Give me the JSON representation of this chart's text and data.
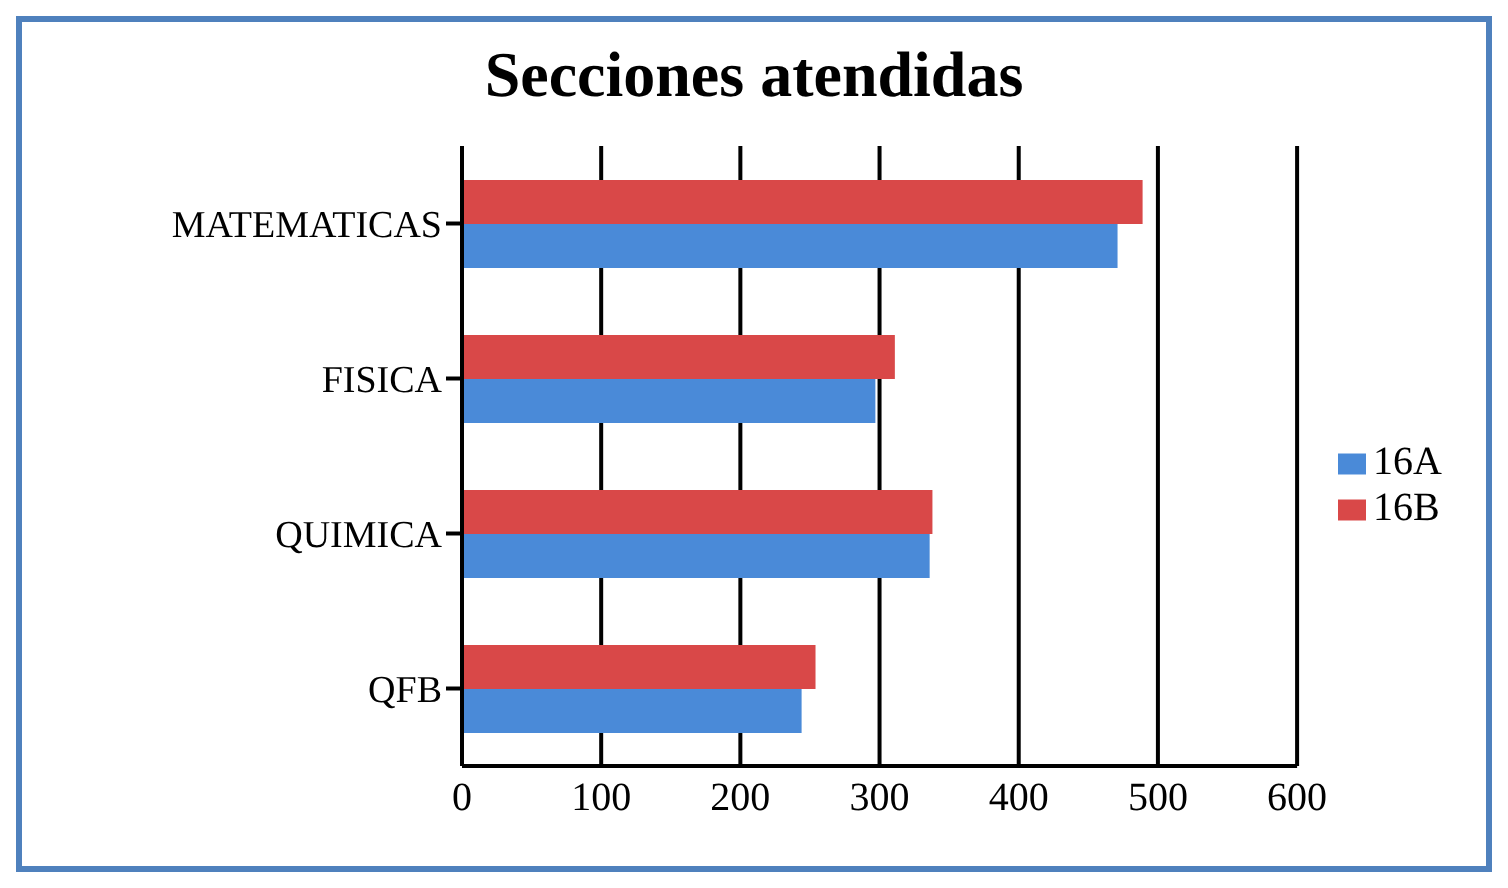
{
  "chart_data": {
    "type": "bar",
    "orientation": "horizontal",
    "title": "Secciones atendidas",
    "categories": [
      "MATEMATICAS",
      "FISICA",
      "QUIMICA",
      "QFB"
    ],
    "series": [
      {
        "name": "16A",
        "color": "#4a8ad8",
        "values": [
          471,
          297,
          336,
          244
        ]
      },
      {
        "name": "16B",
        "color": "#d94848",
        "values": [
          489,
          311,
          338,
          254
        ]
      }
    ],
    "xlim": [
      0,
      600
    ],
    "xticks": [
      0,
      100,
      200,
      300,
      400,
      500,
      600
    ],
    "grid": "x",
    "legend": "right"
  }
}
